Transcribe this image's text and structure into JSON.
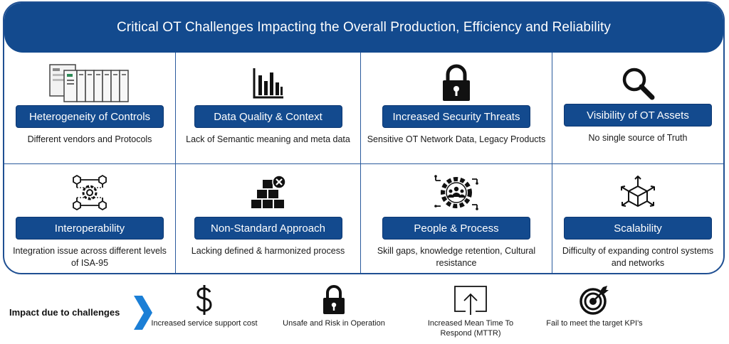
{
  "title": "Critical OT Challenges Impacting the Overall Production, Efficiency and Reliability",
  "challenges": [
    {
      "label": "Heterogeneity of Controls",
      "desc": "Different vendors and Protocols",
      "icon": "plc-rack-icon"
    },
    {
      "label": "Data Quality & Context",
      "desc": "Lack of Semantic meaning and meta data",
      "icon": "bar-chart-icon"
    },
    {
      "label": "Increased Security Threats",
      "desc": "Sensitive OT Network Data, Legacy Products",
      "icon": "padlock-icon"
    },
    {
      "label": "Visibility of OT Assets",
      "desc": "No single source of Truth",
      "icon": "magnifier-icon"
    },
    {
      "label": "Interoperability",
      "desc": "Integration issue across different levels of ISA-95",
      "icon": "network-gear-icon"
    },
    {
      "label": "Non-Standard Approach",
      "desc": "Lacking defined & harmonized process",
      "icon": "boxes-x-icon"
    },
    {
      "label": "People & Process",
      "desc": "Skill gaps, knowledge retention, Cultural resistance",
      "icon": "people-gear-icon"
    },
    {
      "label": "Scalability",
      "desc": "Difficulty of expanding control systems and networks",
      "icon": "cube-arrows-icon"
    }
  ],
  "impact": {
    "label": "Impact due to challenges",
    "items": [
      {
        "text": "Increased service support cost",
        "icon": "dollar-icon"
      },
      {
        "text": "Unsafe and Risk in Operation",
        "icon": "padlock-icon"
      },
      {
        "text": "Increased Mean Time To Respond (MTTR)",
        "icon": "upload-box-icon"
      },
      {
        "text": "Fail to meet the target KPI's",
        "icon": "target-icon"
      }
    ]
  },
  "colors": {
    "primary": "#134a8e",
    "border": "#1f4f92",
    "chevron": "#1b7fd6"
  }
}
